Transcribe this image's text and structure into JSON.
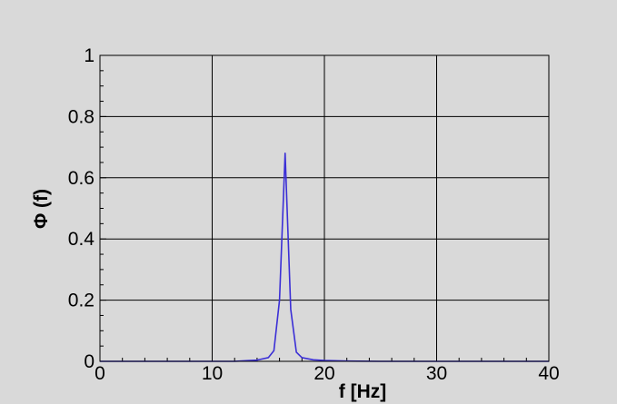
{
  "chart_data": {
    "type": "line",
    "xlabel": "f [Hz]",
    "ylabel": "Φ (f)",
    "xlim": [
      0,
      40
    ],
    "ylim": [
      0,
      1
    ],
    "x_ticks": [
      0,
      10,
      20,
      30,
      40
    ],
    "y_ticks": [
      0,
      0.2,
      0.4,
      0.6,
      0.8,
      1
    ],
    "x_tick_labels": [
      "0",
      "10",
      "20",
      "30",
      "40"
    ],
    "y_tick_labels": [
      "0",
      "0.2",
      "0.4",
      "0.6",
      "0.8",
      "1"
    ],
    "grid": true,
    "background_color": "#d9d9d9",
    "plot_background_color": "#d9d9d9",
    "grid_color": "#000000",
    "series": [
      {
        "color": "#3b2fd6",
        "x": [
          0,
          5,
          10,
          12,
          13,
          14,
          15,
          15.5,
          16,
          16.5,
          17,
          17.5,
          18,
          19,
          20,
          22,
          25,
          30,
          35,
          40
        ],
        "y": [
          0,
          0,
          0,
          0,
          0.002,
          0.004,
          0.012,
          0.035,
          0.2,
          0.68,
          0.17,
          0.03,
          0.012,
          0.005,
          0.003,
          0.001,
          0,
          0,
          0,
          0
        ]
      }
    ]
  }
}
